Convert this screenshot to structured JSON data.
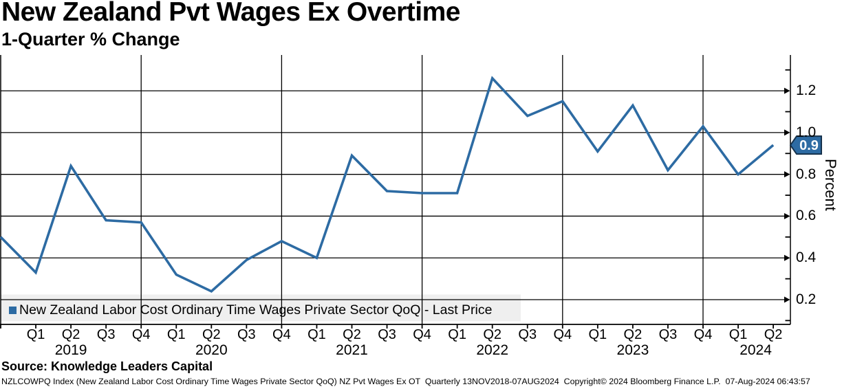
{
  "header": {
    "title": "New Zealand Pvt Wages Ex Overtime",
    "subtitle": "1-Quarter % Change"
  },
  "chart_data": {
    "type": "line",
    "title": "New Zealand Pvt Wages Ex Overtime",
    "subtitle": "1-Quarter % Change",
    "ylabel": "Percent",
    "ylim": [
      0.08,
      1.37
    ],
    "grid": true,
    "legend_position": "bottom-left",
    "legend_label": "New Zealand Labor Cost Ordinary Time Wages Private Sector QoQ - Last Price",
    "categories": [
      "2018 Q4",
      "2019 Q1",
      "2019 Q2",
      "2019 Q3",
      "2019 Q4",
      "2020 Q1",
      "2020 Q2",
      "2020 Q3",
      "2020 Q4",
      "2021 Q1",
      "2021 Q2",
      "2021 Q3",
      "2021 Q4",
      "2022 Q1",
      "2022 Q2",
      "2022 Q3",
      "2022 Q4",
      "2023 Q1",
      "2023 Q2",
      "2023 Q3",
      "2023 Q4",
      "2024 Q1",
      "2024 Q2"
    ],
    "series": [
      {
        "name": "New Zealand Labor Cost Ordinary Time Wages Private Sector QoQ - Last Price",
        "color": "#2d6ba3",
        "values": [
          0.5,
          0.33,
          0.84,
          0.58,
          0.57,
          0.32,
          0.24,
          0.39,
          0.48,
          0.4,
          0.89,
          0.72,
          0.71,
          0.71,
          1.26,
          1.08,
          1.15,
          0.91,
          1.13,
          0.82,
          1.03,
          0.8,
          0.94
        ]
      }
    ],
    "last_value_label": "0.9",
    "x_tick_labels": [
      "Q1",
      "Q2",
      "Q3",
      "Q4",
      "Q1",
      "Q2",
      "Q3",
      "Q4",
      "Q1",
      "Q2",
      "Q3",
      "Q4",
      "Q1",
      "Q2",
      "Q3",
      "Q4",
      "Q1",
      "Q2",
      "Q3",
      "Q4",
      "Q1",
      "Q2"
    ],
    "x_year_labels": [
      "2019",
      "2020",
      "2021",
      "2022",
      "2023",
      "2024"
    ],
    "y_tick_labels": [
      "1.2",
      "1.0",
      "0.8",
      "0.6",
      "0.4",
      "0.2"
    ],
    "y_tick_values": [
      1.2,
      1.0,
      0.8,
      0.6,
      0.4,
      0.2
    ],
    "y_minor_tick_values": [
      1.3,
      1.1,
      0.9,
      0.7,
      0.5,
      0.3,
      0.1
    ]
  },
  "source": "Source: Knowledge Leaders Capital",
  "footer": "NZLCOWPQ Index (New Zealand Labor Cost Ordinary Time Wages Private Sector QoQ) NZ Pvt Wages Ex OT  Quarterly 13NOV2018-07AUG2024  Copyright© 2024 Bloomberg Finance L.P.  07-Aug-2024 06:43:57",
  "colors": {
    "line": "#2d6ba3",
    "legend_swatch": "#2d6ba3",
    "legend_bg": "#efefef",
    "tag_fill": "#2d6ba3",
    "tag_border": "#16324c",
    "tag_text": "#ffffff",
    "grid": "#000000",
    "background": "#ffffff"
  }
}
